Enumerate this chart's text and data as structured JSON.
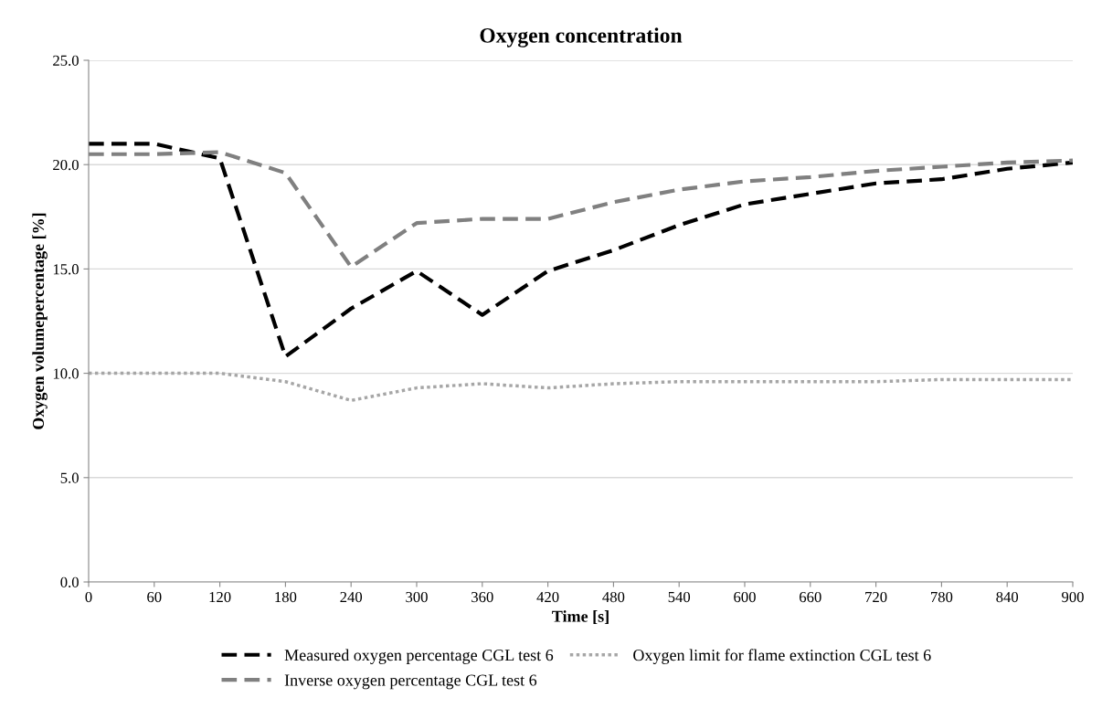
{
  "chart_data": {
    "type": "line",
    "title": "Oxygen concentration",
    "xlabel": "Time [s]",
    "ylabel": "Oxygen volumepercentage [%]",
    "x": [
      0,
      60,
      120,
      180,
      240,
      300,
      360,
      420,
      480,
      540,
      600,
      660,
      720,
      780,
      840,
      900
    ],
    "series": [
      {
        "name": "Measured oxygen percentage CGL test 6",
        "color": "#000000",
        "line_style": "dashed",
        "values": [
          21.0,
          21.0,
          20.3,
          10.8,
          13.1,
          14.9,
          12.8,
          14.9,
          15.9,
          17.1,
          18.1,
          18.6,
          19.1,
          19.3,
          19.8,
          20.1
        ]
      },
      {
        "name": "Inverse oxygen percentage CGL test 6",
        "color": "#808080",
        "line_style": "dashed",
        "values": [
          20.5,
          20.5,
          20.6,
          19.6,
          15.1,
          17.2,
          17.4,
          17.4,
          18.2,
          18.8,
          19.2,
          19.4,
          19.7,
          19.9,
          20.1,
          20.2
        ]
      },
      {
        "name": "Oxygen limit for flame extinction CGL test 6",
        "color": "#a6a6a6",
        "line_style": "dotted",
        "values": [
          10.0,
          10.0,
          10.0,
          9.6,
          8.7,
          9.3,
          9.5,
          9.3,
          9.5,
          9.6,
          9.6,
          9.6,
          9.6,
          9.7,
          9.7,
          9.7
        ]
      }
    ],
    "xlim": [
      0,
      900
    ],
    "xticks": [
      0,
      60,
      120,
      180,
      240,
      300,
      360,
      420,
      480,
      540,
      600,
      660,
      720,
      780,
      840,
      900
    ],
    "ylim": [
      0,
      25
    ],
    "yticks": [
      {
        "value": 0,
        "label": "0.0"
      },
      {
        "value": 5,
        "label": "5.0"
      },
      {
        "value": 10,
        "label": "10.0"
      },
      {
        "value": 15,
        "label": "15.0"
      },
      {
        "value": 20,
        "label": "20.0"
      },
      {
        "value": 25,
        "label": "25.0"
      }
    ],
    "grid": "y",
    "legend": "bottom",
    "marker": "none"
  }
}
